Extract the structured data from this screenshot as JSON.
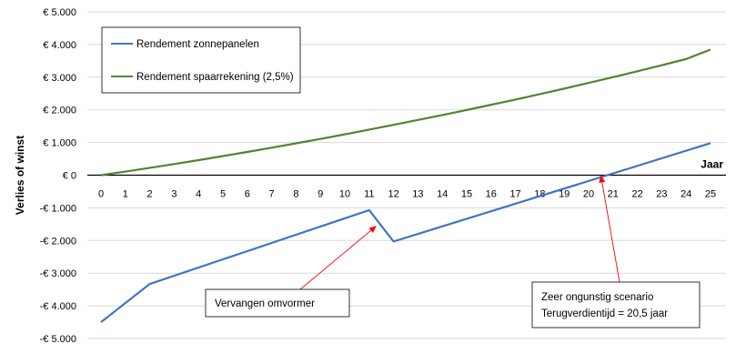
{
  "chart_data": {
    "type": "line",
    "title": "",
    "xlabel": "Jaar",
    "ylabel": "Verlies of winst",
    "x": [
      0,
      1,
      2,
      3,
      4,
      5,
      6,
      7,
      8,
      9,
      10,
      11,
      12,
      13,
      14,
      15,
      16,
      17,
      18,
      19,
      20,
      21,
      22,
      23,
      24,
      25
    ],
    "x_tick_labels": [
      "0",
      "1",
      "2",
      "3",
      "4",
      "5",
      "6",
      "7",
      "8",
      "9",
      "10",
      "11",
      "12",
      "13",
      "14",
      "15",
      "16",
      "17",
      "18",
      "19",
      "20",
      "21",
      "22",
      "23",
      "24",
      "25"
    ],
    "ylim": [
      -5000,
      5000
    ],
    "y_ticks": [
      5000,
      4000,
      3000,
      2000,
      1000,
      0,
      -1000,
      -2000,
      -3000,
      -4000,
      -5000
    ],
    "y_tick_labels": [
      "€ 5.000",
      "€ 4.000",
      "€ 3.000",
      "€ 2.000",
      "€ 1.000",
      "€ 0",
      "-€ 1.000",
      "-€ 2.000",
      "-€ 3.000",
      "-€ 4.000",
      "-€ 5.000"
    ],
    "grid": true,
    "legend_position": "top-left",
    "series": [
      {
        "name": "Rendement zonnepanelen",
        "color": "#4472c4",
        "x": [
          0,
          2,
          11,
          12,
          25
        ],
        "values": [
          -4500,
          -3330,
          -1070,
          -2030,
          980
        ]
      },
      {
        "name": "Rendement spaarrekening (2,5%)",
        "color": "#548235",
        "x": [
          0,
          1,
          2,
          3,
          4,
          5,
          6,
          7,
          8,
          9,
          10,
          11,
          12,
          13,
          14,
          15,
          16,
          17,
          18,
          19,
          20,
          21,
          22,
          23,
          24,
          25
        ],
        "values": [
          0,
          110,
          225,
          340,
          460,
          585,
          710,
          840,
          975,
          1110,
          1250,
          1395,
          1540,
          1690,
          1840,
          1995,
          2155,
          2315,
          2480,
          2650,
          2825,
          3000,
          3180,
          3365,
          3555,
          3845
        ]
      }
    ],
    "annotations": [
      {
        "text": "Vervangen omvormer",
        "target_x": 11.3,
        "target_y": -1550
      },
      {
        "lines": [
          "Zeer ongunstig scenario",
          "Terugverdientijd = 20,5 jaar"
        ],
        "target_x": 20.5,
        "target_y": 0
      }
    ]
  }
}
